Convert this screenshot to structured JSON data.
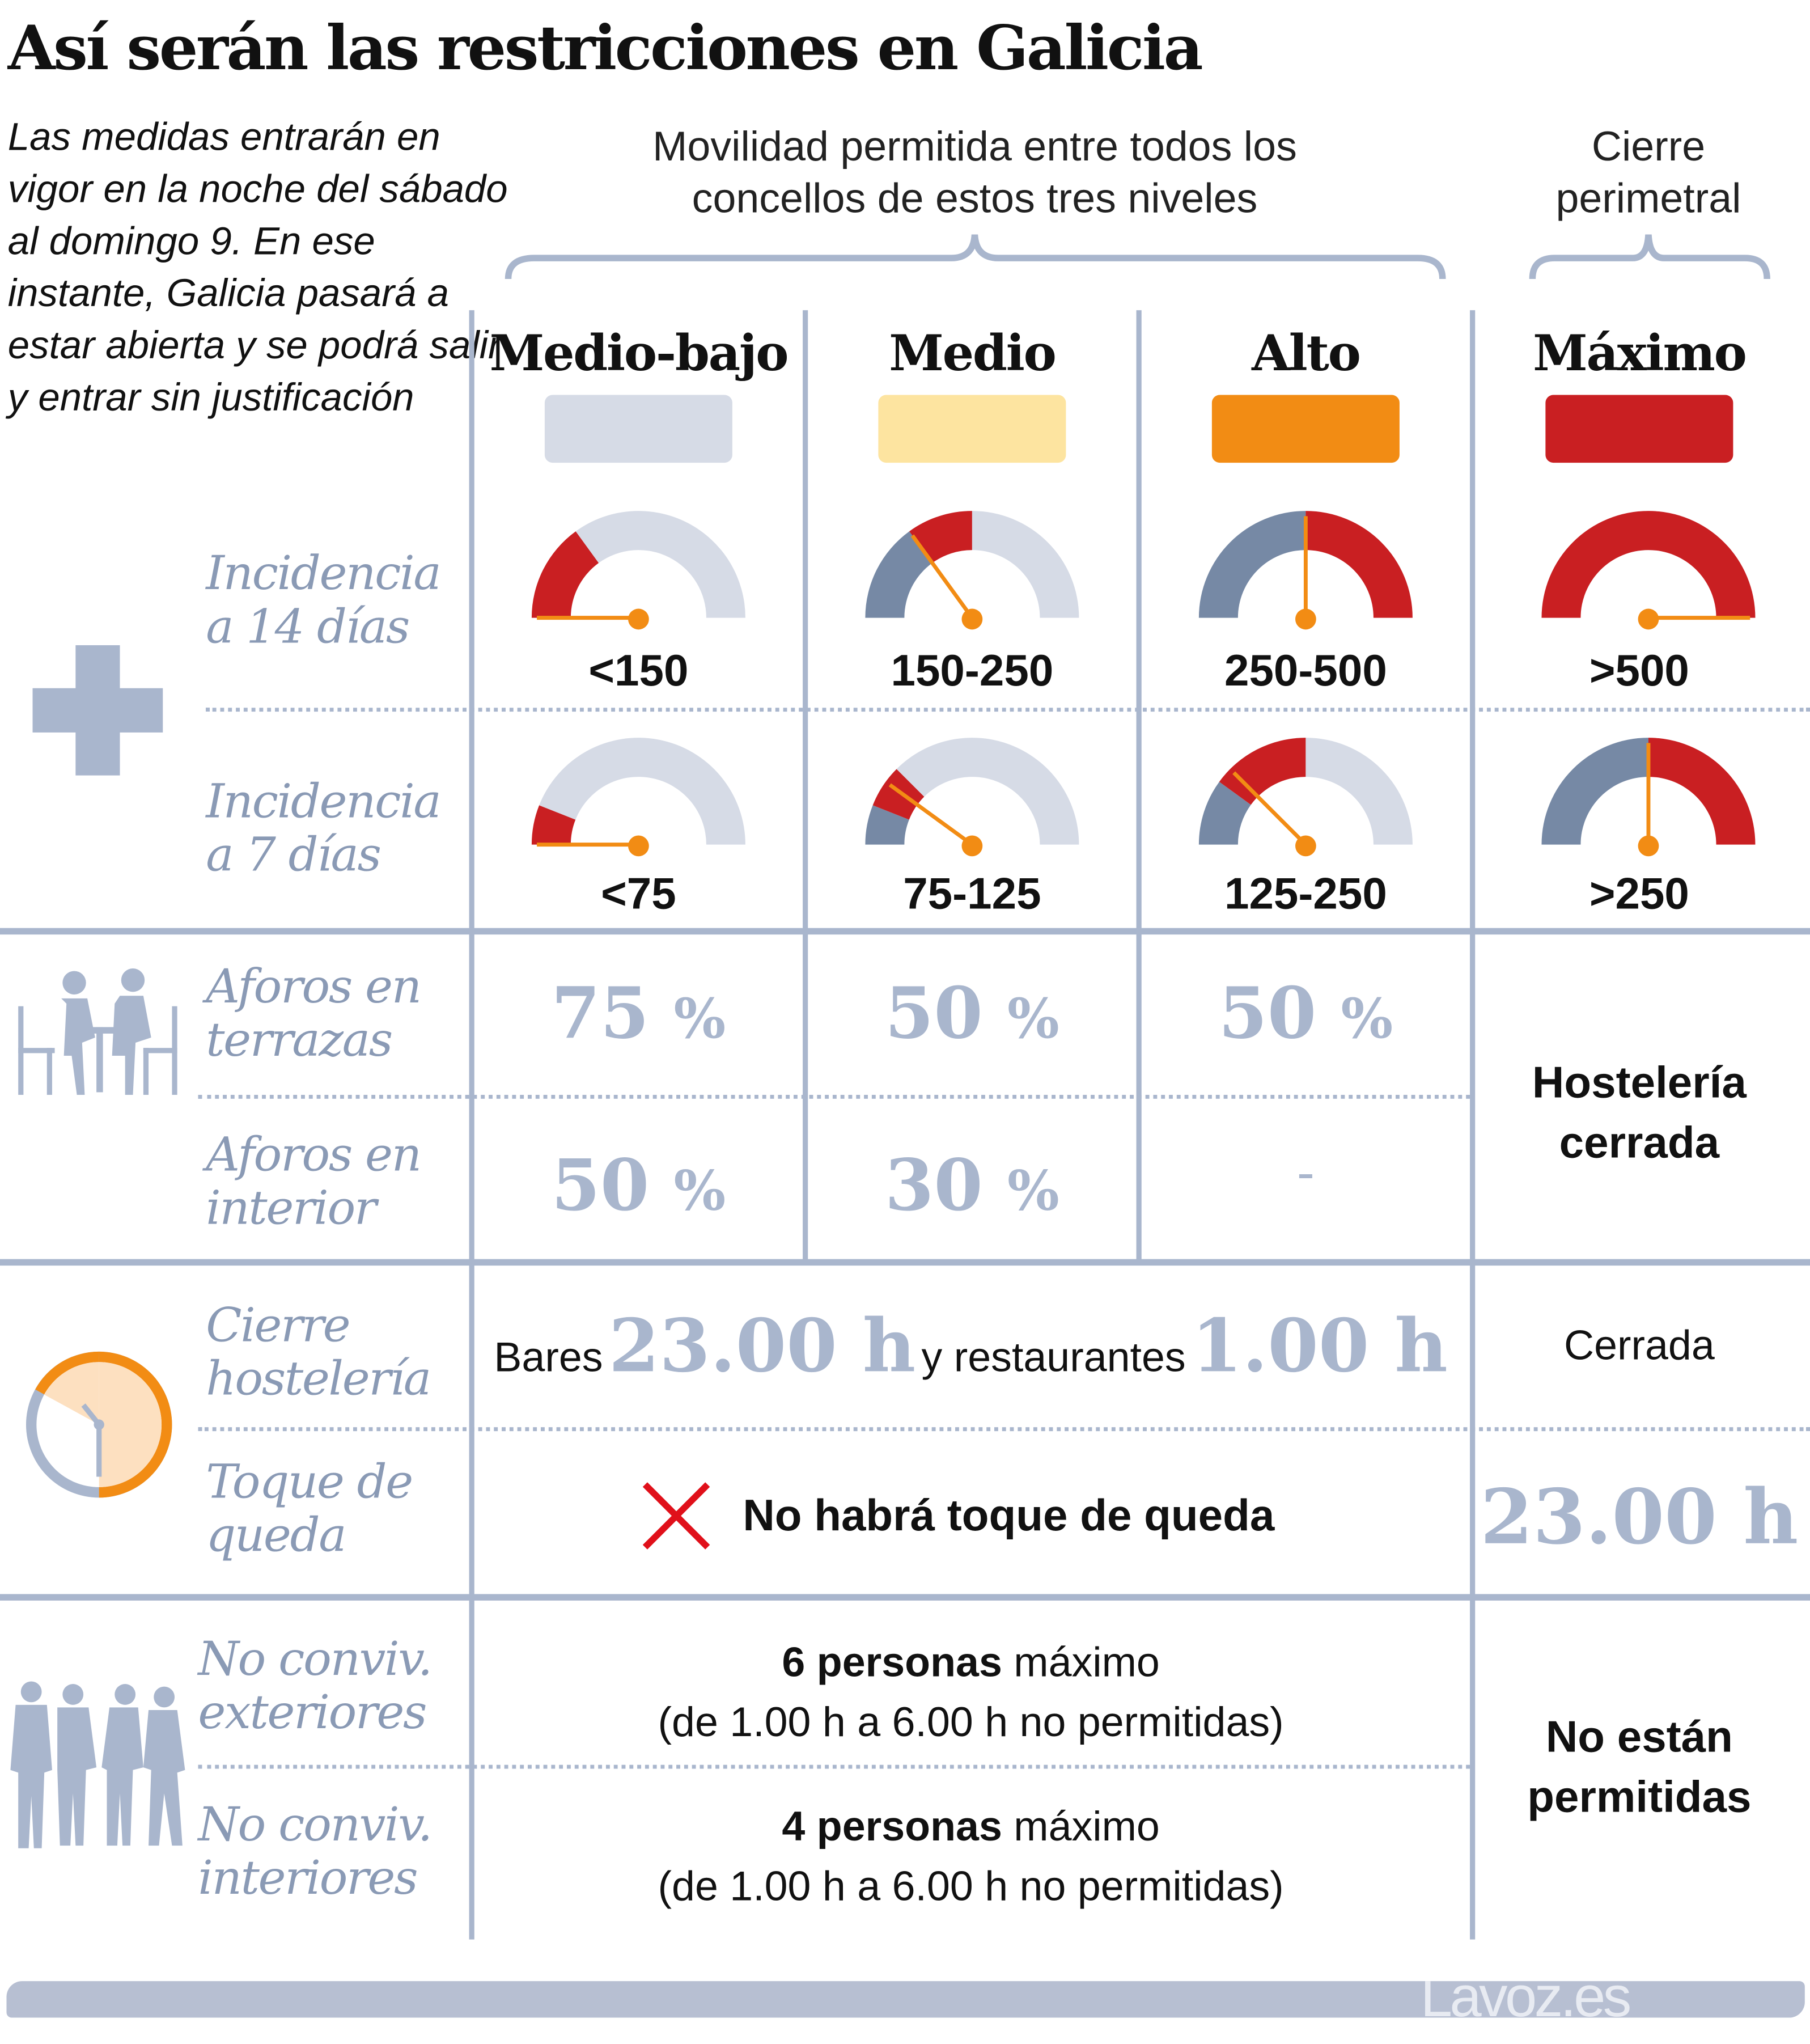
{
  "title": "Así serán las restricciones en Galicia",
  "intro": "Las medidas entrarán en vigor en la noche del sábado al domingo 9. En ese instante, Galicia pasará a estar abierta y se podrá salir y entrar sin justificación",
  "header_mobility": "Movilidad permitida entre todos los concellos de estos tres niveles",
  "header_perimeter": "Cierre perimetral",
  "levels": [
    {
      "name": "Medio-bajo",
      "color": "#d6dbe6",
      "inc14": "<150",
      "inc7": "<75",
      "terrazas": "75",
      "interior": "50"
    },
    {
      "name": "Medio",
      "color": "#fde4a0",
      "inc14": "150-250",
      "inc7": "75-125",
      "terrazas": "50",
      "interior": "30"
    },
    {
      "name": "Alto",
      "color": "#f28c14",
      "inc14": "250-500",
      "inc7": "125-250",
      "terrazas": "50",
      "interior": "-"
    },
    {
      "name": "Máximo",
      "color": "#c91f22",
      "inc14": ">500",
      "inc7": ">250"
    }
  ],
  "pct_sign": "%",
  "gauges": {
    "inc14": [
      {
        "segments": [
          [
            "#c91f22",
            0,
            0.3
          ],
          [
            "#d6dbe6",
            0.3,
            1
          ]
        ],
        "needle": 0.0
      },
      {
        "segments": [
          [
            "#7689a5",
            0,
            0.3
          ],
          [
            "#c91f22",
            0.3,
            0.5
          ],
          [
            "#d6dbe6",
            0.5,
            1
          ]
        ],
        "needle": 0.3
      },
      {
        "segments": [
          [
            "#7689a5",
            0,
            0.5
          ],
          [
            "#c91f22",
            0.5,
            1
          ]
        ],
        "needle": 0.5
      },
      {
        "segments": [
          [
            "#c91f22",
            0,
            1
          ]
        ],
        "needle": 1.0
      }
    ],
    "inc7": [
      {
        "segments": [
          [
            "#c91f22",
            0,
            0.12
          ],
          [
            "#d6dbe6",
            0.12,
            1
          ]
        ],
        "needle": 0.0
      },
      {
        "segments": [
          [
            "#7689a5",
            0,
            0.12
          ],
          [
            "#c91f22",
            0.12,
            0.25
          ],
          [
            "#d6dbe6",
            0.25,
            1
          ]
        ],
        "needle": 0.2
      },
      {
        "segments": [
          [
            "#7689a5",
            0,
            0.2
          ],
          [
            "#c91f22",
            0.2,
            0.5
          ],
          [
            "#d6dbe6",
            0.5,
            1
          ]
        ],
        "needle": 0.25
      },
      {
        "segments": [
          [
            "#7689a5",
            0,
            0.5
          ],
          [
            "#c91f22",
            0.5,
            1
          ]
        ],
        "needle": 0.5
      }
    ]
  },
  "rows": {
    "inc14": "Incidencia a 14 días",
    "inc7": "Incidencia a 7 días",
    "terrazas": "Aforos en terrazas",
    "interior": "Aforos en interior",
    "cierre": "Cierre hostelería",
    "toque": "Toque de queda",
    "ext": "No conviv. exteriores",
    "int": "No conviv. interiores"
  },
  "hosteleria_cerrada": "Hostelería cerrada",
  "cierre": {
    "bares": "Bares",
    "bares_time": "23.00 h",
    "y_rest": "y restaurantes",
    "rest_time": "1.00 h",
    "max": "Cerrada"
  },
  "toque": {
    "none": "No habrá toque de queda",
    "max": "23.00 h"
  },
  "ext": {
    "count": "6 personas",
    "suffix": "máximo",
    "note": "(de 1.00 h a 6.00 h no permitidas)"
  },
  "int": {
    "count": "4 personas",
    "suffix": "máximo",
    "note": "(de 1.00 h a 6.00 h no permitidas)"
  },
  "no_permitidas": "No están permitidas",
  "footer": "Lavoz.es",
  "colors": {
    "accent": "#a9b6cd",
    "label": "#8a9ab5",
    "orange": "#f28c14",
    "red": "#c91f22"
  }
}
